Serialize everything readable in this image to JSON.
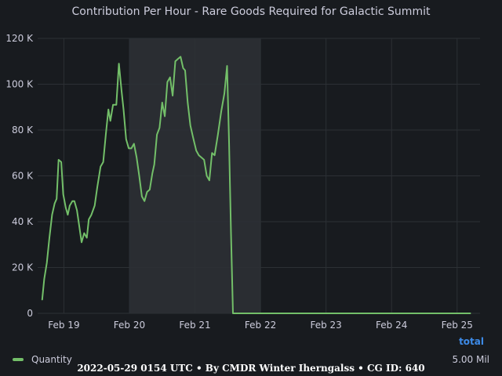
{
  "panel": {
    "title": "Contribution Per Hour - Rare Goods Required for Galactic Summit",
    "footer": "2022-05-29 0154 UTC • By CMDR Winter Iherngalss • CG ID: 640"
  },
  "legend": {
    "header": "total",
    "items": [
      {
        "label": "Quantity",
        "value": "5.00 Mil",
        "color": "#73bf69"
      }
    ]
  },
  "colors": {
    "background": "#181b1f",
    "grid": "#2c3035",
    "text": "#ccccdc",
    "series": "#73bf69",
    "total_header": "#3d8be8"
  },
  "chart_data": {
    "type": "line",
    "title": "Contribution Per Hour - Rare Goods Required for Galactic Summit",
    "xlabel": "",
    "ylabel": "",
    "x_unit": "days (Feb)",
    "xlim": [
      18.6,
      25.35
    ],
    "ylim": [
      0,
      120000
    ],
    "x_ticks": [
      {
        "value": 19,
        "label": "Feb 19"
      },
      {
        "value": 20,
        "label": "Feb 20"
      },
      {
        "value": 21,
        "label": "Feb 21"
      },
      {
        "value": 22,
        "label": "Feb 22"
      },
      {
        "value": 23,
        "label": "Feb 23"
      },
      {
        "value": 24,
        "label": "Feb 24"
      },
      {
        "value": 25,
        "label": "Feb 25"
      }
    ],
    "y_ticks": [
      {
        "value": 0,
        "label": "0"
      },
      {
        "value": 20000,
        "label": "20 K"
      },
      {
        "value": 40000,
        "label": "40 K"
      },
      {
        "value": 60000,
        "label": "60 K"
      },
      {
        "value": 80000,
        "label": "80 K"
      },
      {
        "value": 100000,
        "label": "100 K"
      },
      {
        "value": 120000,
        "label": "120 K"
      }
    ],
    "grid": true,
    "legend_position": "bottom",
    "highlight_range": [
      20.0,
      22.0
    ],
    "series": [
      {
        "name": "Quantity",
        "color": "#73bf69",
        "points": [
          [
            18.67,
            6000
          ],
          [
            18.7,
            15000
          ],
          [
            18.74,
            22000
          ],
          [
            18.78,
            33000
          ],
          [
            18.82,
            43000
          ],
          [
            18.86,
            48000
          ],
          [
            18.89,
            50000
          ],
          [
            18.92,
            67000
          ],
          [
            18.96,
            66000
          ],
          [
            18.99,
            52000
          ],
          [
            19.03,
            46000
          ],
          [
            19.06,
            43000
          ],
          [
            19.09,
            47000
          ],
          [
            19.13,
            49000
          ],
          [
            19.16,
            49000
          ],
          [
            19.2,
            45000
          ],
          [
            19.24,
            37000
          ],
          [
            19.27,
            31000
          ],
          [
            19.31,
            35000
          ],
          [
            19.35,
            33000
          ],
          [
            19.38,
            41000
          ],
          [
            19.42,
            43000
          ],
          [
            19.47,
            47000
          ],
          [
            19.51,
            55000
          ],
          [
            19.56,
            64000
          ],
          [
            19.6,
            66000
          ],
          [
            19.64,
            78000
          ],
          [
            19.68,
            89000
          ],
          [
            19.71,
            84000
          ],
          [
            19.75,
            91000
          ],
          [
            19.8,
            91000
          ],
          [
            19.84,
            109000
          ],
          [
            19.88,
            97000
          ],
          [
            19.91,
            89000
          ],
          [
            19.95,
            76000
          ],
          [
            19.99,
            72000
          ],
          [
            20.03,
            72000
          ],
          [
            20.07,
            74000
          ],
          [
            20.11,
            68000
          ],
          [
            20.15,
            60000
          ],
          [
            20.19,
            51000
          ],
          [
            20.23,
            49000
          ],
          [
            20.27,
            53000
          ],
          [
            20.31,
            54000
          ],
          [
            20.35,
            61000
          ],
          [
            20.38,
            65000
          ],
          [
            20.42,
            78000
          ],
          [
            20.46,
            81000
          ],
          [
            20.5,
            92000
          ],
          [
            20.54,
            86000
          ],
          [
            20.58,
            101000
          ],
          [
            20.62,
            103000
          ],
          [
            20.66,
            95000
          ],
          [
            20.7,
            110000
          ],
          [
            20.74,
            111000
          ],
          [
            20.78,
            112000
          ],
          [
            20.82,
            107000
          ],
          [
            20.85,
            106000
          ],
          [
            20.89,
            92000
          ],
          [
            20.93,
            82000
          ],
          [
            20.97,
            77000
          ],
          [
            21.02,
            71000
          ],
          [
            21.06,
            69000
          ],
          [
            21.1,
            68000
          ],
          [
            21.14,
            67000
          ],
          [
            21.18,
            60000
          ],
          [
            21.22,
            58000
          ],
          [
            21.26,
            70000
          ],
          [
            21.3,
            69000
          ],
          [
            21.35,
            78000
          ],
          [
            21.4,
            88000
          ],
          [
            21.45,
            96000
          ],
          [
            21.49,
            108000
          ],
          [
            21.52,
            75000
          ],
          [
            21.55,
            35000
          ],
          [
            21.58,
            0
          ],
          [
            21.8,
            0
          ],
          [
            22.0,
            0
          ],
          [
            23.0,
            0
          ],
          [
            24.0,
            0
          ],
          [
            25.0,
            0
          ],
          [
            25.2,
            0
          ]
        ]
      }
    ]
  }
}
